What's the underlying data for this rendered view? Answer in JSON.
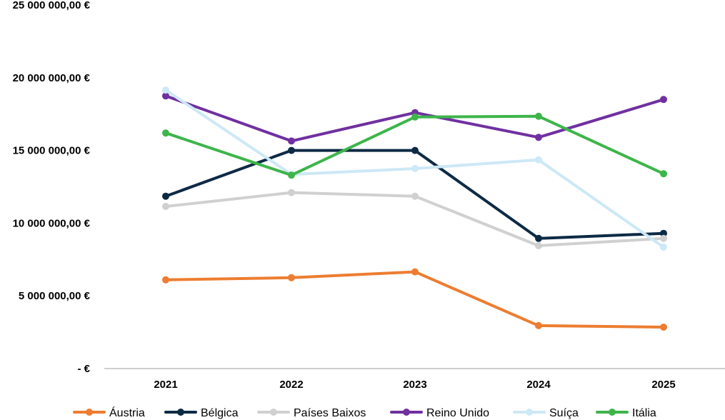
{
  "chart_data": {
    "type": "line",
    "title": "",
    "xlabel": "",
    "ylabel": "",
    "categories": [
      "2021",
      "2022",
      "2023",
      "2024",
      "2025"
    ],
    "ylim": [
      0,
      25000000
    ],
    "y_ticks": [
      {
        "value": 0,
        "label": "-  €"
      },
      {
        "value": 5000000,
        "label": "5 000 000,00 €"
      },
      {
        "value": 10000000,
        "label": "10 000 000,00 €"
      },
      {
        "value": 15000000,
        "label": "15 000 000,00 €"
      },
      {
        "value": 20000000,
        "label": "20 000 000,00 €"
      },
      {
        "value": 25000000,
        "label": "25 000 000,00 €"
      }
    ],
    "grid": false,
    "legend_position": "bottom",
    "series": [
      {
        "name": "Áustria",
        "color": "#ED7D31",
        "values": [
          6100000,
          6250000,
          6650000,
          2950000,
          2850000
        ]
      },
      {
        "name": "Bélgica",
        "color": "#0D2A45",
        "values": [
          11850000,
          15000000,
          15000000,
          8950000,
          9300000
        ]
      },
      {
        "name": "Países Baixos",
        "color": "#D0D0D0",
        "values": [
          11150000,
          12100000,
          11850000,
          8450000,
          8950000
        ]
      },
      {
        "name": "Reino Unido",
        "color": "#7030A0",
        "values": [
          18750000,
          15650000,
          17600000,
          15900000,
          18500000
        ]
      },
      {
        "name": "Suíça",
        "color": "#CDE8F6",
        "values": [
          19150000,
          13350000,
          13750000,
          14350000,
          8350000
        ]
      },
      {
        "name": "Itália",
        "color": "#3DB54A",
        "values": [
          16200000,
          13300000,
          17300000,
          17350000,
          13400000
        ]
      }
    ]
  }
}
